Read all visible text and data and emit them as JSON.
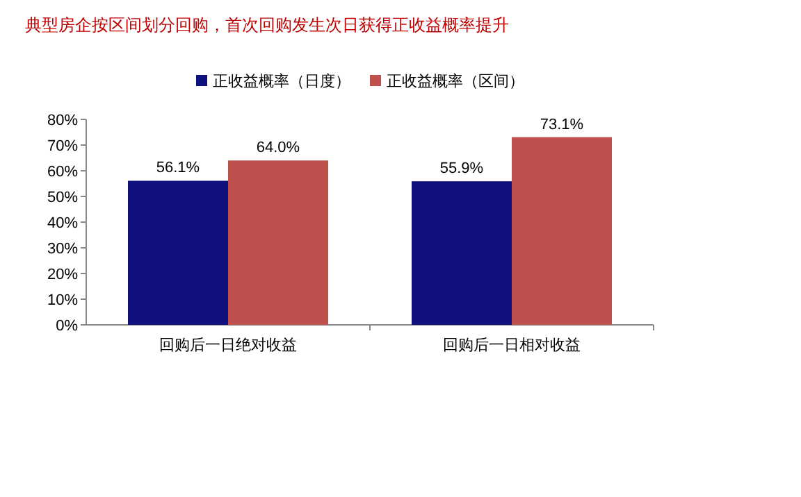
{
  "chart_data": {
    "type": "bar",
    "title": "典型房企按区间划分回购，首次回购发生次日获得正收益概率提升",
    "categories": [
      "回购后一日绝对收益",
      "回购后一日相对收益"
    ],
    "series": [
      {
        "name": "正收益概率（日度）",
        "color": "#10107f",
        "values": [
          56.1,
          55.9
        ],
        "value_labels": [
          "56.1%",
          "55.9%"
        ]
      },
      {
        "name": "正收益概率（区间）",
        "color": "#c0504d",
        "values": [
          64.0,
          73.1
        ],
        "value_labels": [
          "64.0%",
          "73.1%"
        ]
      }
    ],
    "ylim": [
      0,
      80
    ],
    "yticks": [
      {
        "value": 0,
        "label": "0%"
      },
      {
        "value": 10,
        "label": "10%"
      },
      {
        "value": 20,
        "label": "20%"
      },
      {
        "value": 30,
        "label": "30%"
      },
      {
        "value": 40,
        "label": "40%"
      },
      {
        "value": 50,
        "label": "50%"
      },
      {
        "value": 60,
        "label": "60%"
      },
      {
        "value": 70,
        "label": "70%"
      },
      {
        "value": 80,
        "label": "80%"
      }
    ],
    "legend": "top",
    "grid": false
  }
}
